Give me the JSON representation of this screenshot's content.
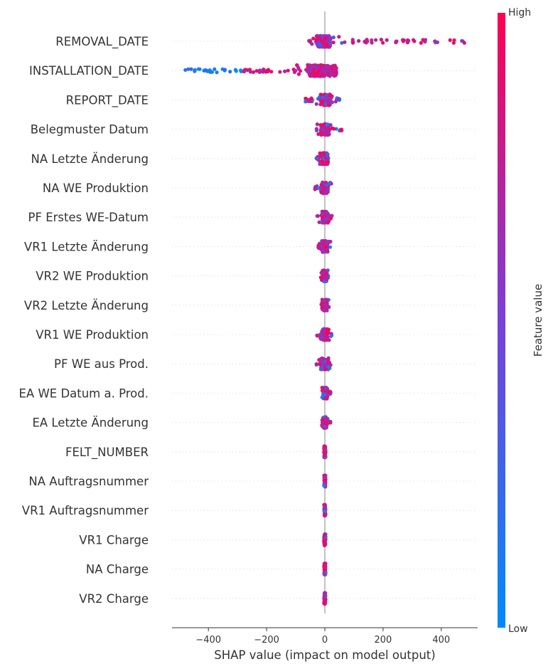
{
  "chart_data": {
    "type": "scatter",
    "subtype": "shap-beeswarm",
    "xlabel": "SHAP value (impact on model output)",
    "xlim": [
      -525,
      525
    ],
    "xticks": [
      -400,
      -200,
      0,
      200,
      400
    ],
    "xtick_labels": [
      "−400",
      "−200",
      "0",
      "200",
      "400"
    ],
    "features": [
      {
        "name": "REMOVAL_DATE",
        "min": -70,
        "max": 480,
        "core": [
          -30,
          20
        ],
        "density": 260
      },
      {
        "name": "INSTALLATION_DATE",
        "min": -480,
        "max": 40,
        "core": [
          -60,
          40
        ],
        "density": 260
      },
      {
        "name": "REPORT_DATE",
        "min": -80,
        "max": 55,
        "core": [
          -15,
          20
        ],
        "density": 140
      },
      {
        "name": "Belegmuster Datum",
        "min": -30,
        "max": 65,
        "core": [
          -15,
          15
        ],
        "density": 110
      },
      {
        "name": "NA Letzte Änderung",
        "min": -30,
        "max": 15,
        "core": [
          -10,
          10
        ],
        "density": 100
      },
      {
        "name": "NA WE Produktion",
        "min": -35,
        "max": 30,
        "core": [
          -12,
          12
        ],
        "density": 100
      },
      {
        "name": "PF Erstes WE-Datum",
        "min": -30,
        "max": 25,
        "core": [
          -10,
          10
        ],
        "density": 100
      },
      {
        "name": "VR1 Letzte Änderung",
        "min": -25,
        "max": 20,
        "core": [
          -10,
          10
        ],
        "density": 100
      },
      {
        "name": "VR2 WE Produktion",
        "min": -15,
        "max": 15,
        "core": [
          -8,
          8
        ],
        "density": 100
      },
      {
        "name": "VR2 Letzte Änderung",
        "min": -15,
        "max": 15,
        "core": [
          -8,
          8
        ],
        "density": 100
      },
      {
        "name": "VR1 WE Produktion",
        "min": -30,
        "max": 25,
        "core": [
          -10,
          10
        ],
        "density": 100
      },
      {
        "name": "PF WE aus Prod.",
        "min": -30,
        "max": 20,
        "core": [
          -12,
          12
        ],
        "density": 100
      },
      {
        "name": "EA WE Datum a. Prod.",
        "min": -10,
        "max": 20,
        "core": [
          -6,
          6
        ],
        "density": 90
      },
      {
        "name": "EA Letzte Änderung",
        "min": -10,
        "max": 20,
        "core": [
          -6,
          6
        ],
        "density": 90
      },
      {
        "name": "FELT_NUMBER",
        "min": -3,
        "max": 3,
        "core": [
          -2,
          2
        ],
        "density": 70
      },
      {
        "name": "NA Auftragsnummer",
        "min": -3,
        "max": 3,
        "core": [
          -2,
          2
        ],
        "density": 70
      },
      {
        "name": "VR1 Auftragsnummer",
        "min": -3,
        "max": 3,
        "core": [
          -2,
          2
        ],
        "density": 70
      },
      {
        "name": "VR1 Charge",
        "min": -3,
        "max": 3,
        "core": [
          -2,
          2
        ],
        "density": 70
      },
      {
        "name": "NA Charge",
        "min": -3,
        "max": 3,
        "core": [
          -2,
          2
        ],
        "density": 70
      },
      {
        "name": "VR2 Charge",
        "min": -3,
        "max": 3,
        "core": [
          -2,
          2
        ],
        "density": 70
      }
    ],
    "colorbar": {
      "label": "Feature value",
      "high_label": "High",
      "low_label": "Low",
      "low_color": "#008bfb",
      "high_color": "#ff0051"
    },
    "grid": false,
    "zero_line": true
  }
}
